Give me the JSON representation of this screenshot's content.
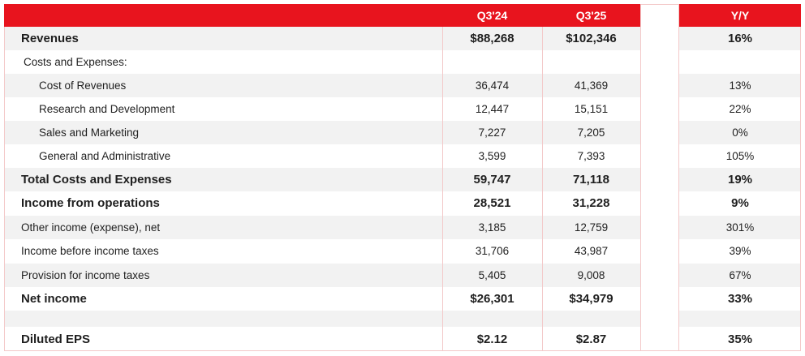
{
  "header": {
    "q24": "Q3'24",
    "q25": "Q3'25",
    "yy": "Y/Y"
  },
  "rows": [
    {
      "label": "Revenues",
      "q24": "$88,268",
      "q25": "$102,346",
      "yy": "16%"
    },
    {
      "label": "Costs and Expenses:",
      "q24": "",
      "q25": "",
      "yy": ""
    },
    {
      "label": "Cost of Revenues",
      "q24": "36,474",
      "q25": "41,369",
      "yy": "13%"
    },
    {
      "label": "Research and Development",
      "q24": "12,447",
      "q25": "15,151",
      "yy": "22%"
    },
    {
      "label": "Sales and Marketing",
      "q24": "7,227",
      "q25": "7,205",
      "yy": "0%"
    },
    {
      "label": "General and Administrative",
      "q24": "3,599",
      "q25": "7,393",
      "yy": "105%"
    },
    {
      "label": "Total Costs and Expenses",
      "q24": "59,747",
      "q25": "71,118",
      "yy": "19%"
    },
    {
      "label": "Income from operations",
      "q24": "28,521",
      "q25": "31,228",
      "yy": "9%"
    },
    {
      "label": "Other income (expense), net",
      "q24": "3,185",
      "q25": "12,759",
      "yy": "301%"
    },
    {
      "label": "Income before income taxes",
      "q24": "31,706",
      "q25": "43,987",
      "yy": "39%"
    },
    {
      "label": "Provision for income taxes",
      "q24": "5,405",
      "q25": "9,008",
      "yy": "67%"
    },
    {
      "label": "Net income",
      "q24": "$26,301",
      "q25": "$34,979",
      "yy": "33%"
    },
    {
      "label": "Diluted EPS",
      "q24": "$2.12",
      "q25": "$2.87",
      "yy": "35%"
    }
  ],
  "colors": {
    "header_red": "#e8141e",
    "row_shade": "#f2f2f2",
    "grid_line": "#f3c9c9"
  }
}
